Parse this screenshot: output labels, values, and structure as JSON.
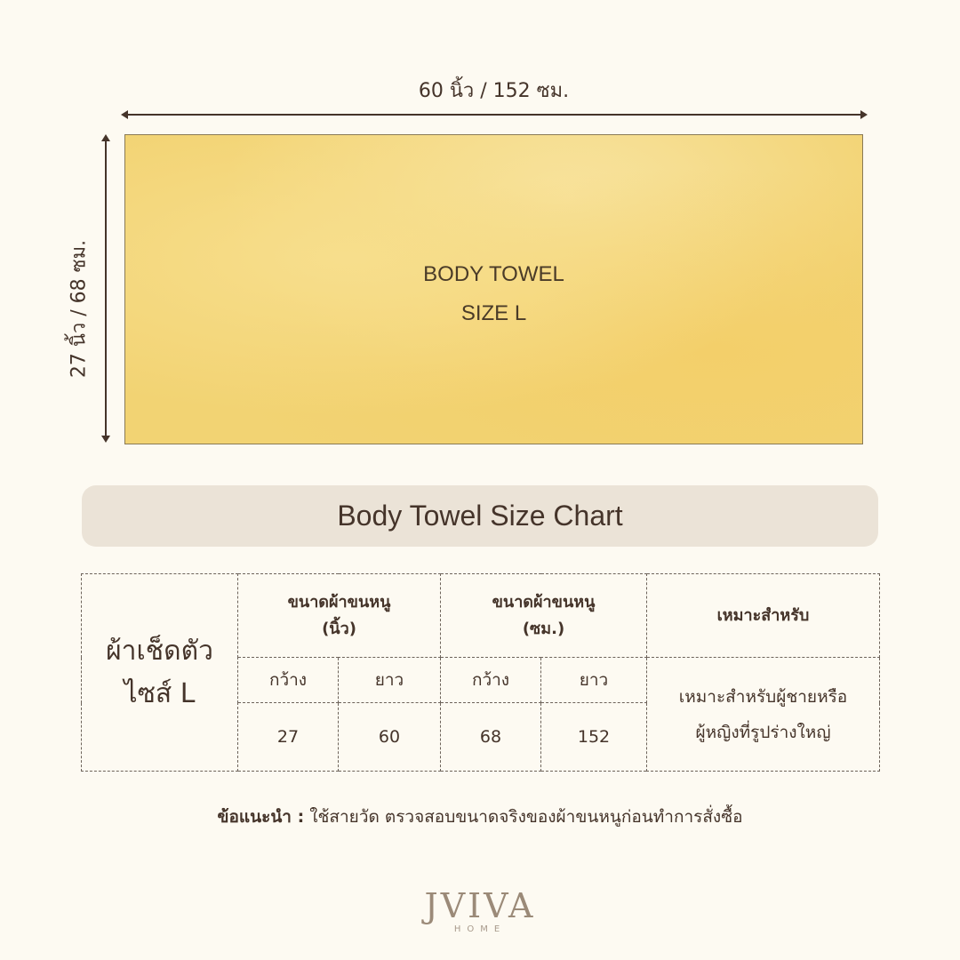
{
  "dimensions": {
    "width_label": "60 นิ้ว / 152 ซม.",
    "height_label": "27 นิ้ว / 68 ซม."
  },
  "towel": {
    "line1": "BODY TOWEL",
    "line2": "SIZE L",
    "color": "#f2d373"
  },
  "title": "Body Towel Size Chart",
  "table": {
    "row_label": [
      "ผ้าเช็ดตัว",
      "ไซส์ L"
    ],
    "group_inch": [
      "ขนาดผ้าขนหนู",
      "(นิ้ว)"
    ],
    "group_cm": [
      "ขนาดผ้าขนหนู",
      "(ซม.)"
    ],
    "suitable_header": "เหมาะสำหรับ",
    "sub": {
      "width": "กว้าง",
      "length": "ยาว"
    },
    "values": {
      "inch_width": "27",
      "inch_length": "60",
      "cm_width": "68",
      "cm_length": "152"
    },
    "suitable": [
      "เหมาะสำหรับผู้ชายหรือ",
      "ผู้หญิงที่รูปร่างใหญ่"
    ]
  },
  "note": {
    "label": "ข้อแนะนำ :",
    "text": " ใช้สายวัด ตรวจสอบขนาดจริงของผ้าขนหนูก่อนทำการสั่งซื้อ"
  },
  "logo": {
    "main": "JVIVA",
    "sub": "HOME"
  }
}
